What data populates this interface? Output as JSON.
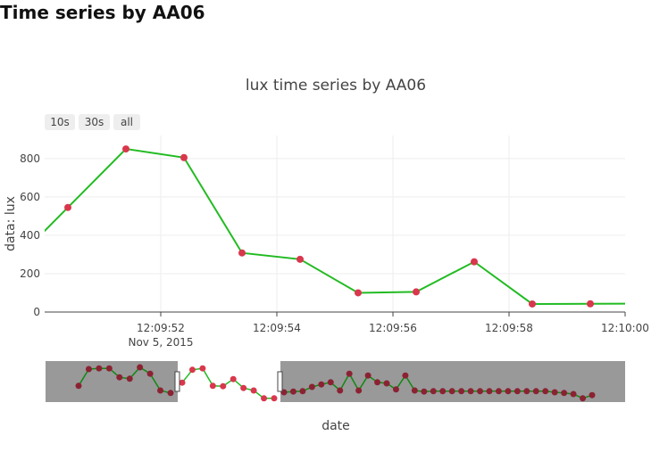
{
  "page": {
    "heading": "Time series by AA06"
  },
  "chart_data": {
    "type": "line",
    "title": "lux time series by AA06",
    "xlabel": "date",
    "ylabel": "data: lux",
    "x_unit": "time of day (hh:mm:ss), Nov 5, 2015",
    "xlim": [
      "12:09:50.0",
      "12:10:00.0"
    ],
    "ylim": [
      0,
      920
    ],
    "x_ticks": [
      {
        "t": "12:09:52",
        "label": "12:09:52",
        "sublabel": "Nov 5, 2015"
      },
      {
        "t": "12:09:54",
        "label": "12:09:54"
      },
      {
        "t": "12:09:56",
        "label": "12:09:56"
      },
      {
        "t": "12:09:58",
        "label": "12:09:58"
      },
      {
        "t": "12:10:00",
        "label": "12:10:00"
      }
    ],
    "y_ticks": [
      0,
      200,
      400,
      600,
      800
    ],
    "grid": true,
    "line_color": "#22bb22",
    "marker_color": "#d9374d",
    "series": [
      {
        "x": [
          "12:09:50.4",
          "12:09:51.4",
          "12:09:52.4",
          "12:09:53.4",
          "12:09:54.4",
          "12:09:55.4",
          "12:09:56.4",
          "12:09:57.4",
          "12:09:58.4",
          "12:09:59.4"
        ],
        "y": [
          545,
          850,
          805,
          308,
          275,
          100,
          105,
          262,
          42,
          43
        ]
      }
    ],
    "range_selector": {
      "buttons": [
        "10s",
        "30s",
        "all"
      ]
    },
    "range_slider": {
      "window_start": "12:09:50.0",
      "window_end": "12:10:00.0",
      "mask_color": "#999999",
      "selected_points_y": [
        0.53,
        0.17,
        0.13,
        0.62,
        0.63,
        0.43,
        0.68,
        0.75,
        0.97,
        0.97
      ],
      "left_points_y": [
        0.62,
        0.15,
        0.13,
        0.13,
        0.38,
        0.42,
        0.1,
        0.28,
        0.75,
        0.82
      ],
      "right_points_y": [
        0.8,
        0.78,
        0.77,
        0.65,
        0.58,
        0.52,
        0.75,
        0.28,
        0.75,
        0.33,
        0.52,
        0.55,
        0.72,
        0.33,
        0.75,
        0.78,
        0.77,
        0.77,
        0.77,
        0.77,
        0.77,
        0.77,
        0.77,
        0.77,
        0.77,
        0.77,
        0.77,
        0.77,
        0.77,
        0.8,
        0.82,
        0.85,
        0.97,
        0.88
      ]
    }
  }
}
